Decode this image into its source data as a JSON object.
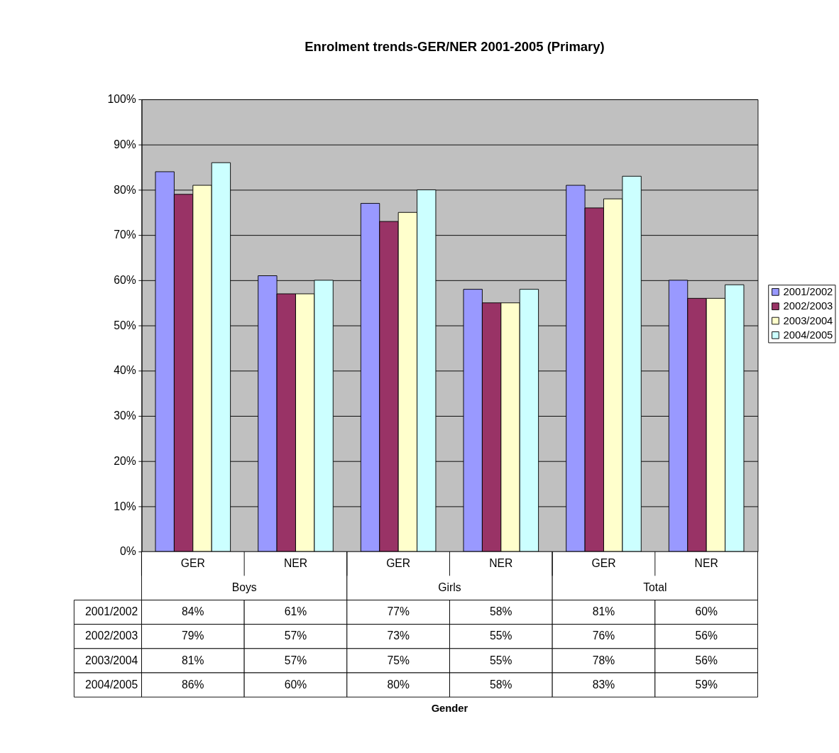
{
  "chart_data": {
    "type": "bar",
    "title": "Enrolment trends-GER/NER 2001-2005 (Primary)",
    "categories": [
      "GER",
      "NER",
      "GER",
      "NER",
      "GER",
      "NER"
    ],
    "annotations": [
      "Boys",
      "Girls",
      "Total",
      "Gender"
    ],
    "series": [
      {
        "name": "2001/2002",
        "color": "#9999ff",
        "values": [
          84,
          61,
          77,
          58,
          81,
          60
        ],
        "value_labels": [
          "84%",
          "61%",
          "77%",
          "58%",
          "81%",
          "60%"
        ]
      },
      {
        "name": "2002/2003",
        "color": "#993366",
        "values": [
          79,
          57,
          73,
          55,
          76,
          56
        ],
        "value_labels": [
          "79%",
          "57%",
          "73%",
          "55%",
          "76%",
          "56%"
        ]
      },
      {
        "name": "2003/2004",
        "color": "#ffffcc",
        "values": [
          81,
          57,
          75,
          55,
          78,
          56
        ],
        "value_labels": [
          "81%",
          "57%",
          "75%",
          "55%",
          "78%",
          "56%"
        ]
      },
      {
        "name": "2004/2005",
        "color": "#ccffff",
        "values": [
          86,
          60,
          80,
          58,
          83,
          59
        ],
        "value_labels": [
          "86%",
          "60%",
          "80%",
          "58%",
          "83%",
          "59%"
        ]
      }
    ],
    "ylim": [
      0,
      100
    ],
    "yticks": [
      {
        "value": 0,
        "label": "0%"
      },
      {
        "value": 10,
        "label": "10%"
      },
      {
        "value": 20,
        "label": "20%"
      },
      {
        "value": 30,
        "label": "30%"
      },
      {
        "value": 40,
        "label": "40%"
      },
      {
        "value": 50,
        "label": "50%"
      },
      {
        "value": 60,
        "label": "60%"
      },
      {
        "value": 70,
        "label": "70%"
      },
      {
        "value": 80,
        "label": "80%"
      },
      {
        "value": 90,
        "label": "90%"
      },
      {
        "value": 100,
        "label": "100%"
      }
    ],
    "grid": "y",
    "legend": "right"
  }
}
